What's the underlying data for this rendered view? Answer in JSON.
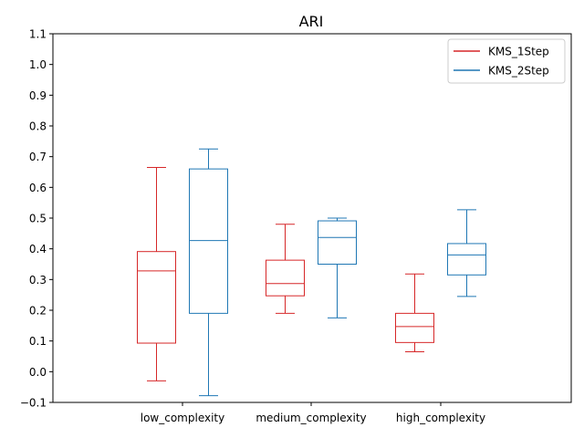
{
  "chart_data": {
    "type": "box",
    "title": "ARI",
    "xlabel": "",
    "ylabel": "",
    "ylim": [
      -0.1,
      1.1
    ],
    "yticks": [
      -0.1,
      0.0,
      0.1,
      0.2,
      0.3,
      0.4,
      0.5,
      0.6,
      0.7,
      0.8,
      0.9,
      1.0,
      1.1
    ],
    "ytick_labels": [
      "−0.1",
      "0.0",
      "0.1",
      "0.2",
      "0.3",
      "0.4",
      "0.5",
      "0.6",
      "0.7",
      "0.8",
      "0.9",
      "1.0",
      "1.1"
    ],
    "categories": [
      "low_complexity",
      "medium_complexity",
      "high_complexity"
    ],
    "legend_position": "top-right",
    "series": [
      {
        "name": "KMS_1Step",
        "color": "#d62728",
        "boxes": [
          {
            "whisker_low": -0.03,
            "q1": 0.093,
            "median": 0.328,
            "q3": 0.391,
            "whisker_high": 0.665
          },
          {
            "whisker_low": 0.19,
            "q1": 0.247,
            "median": 0.287,
            "q3": 0.363,
            "whisker_high": 0.48
          },
          {
            "whisker_low": 0.065,
            "q1": 0.095,
            "median": 0.147,
            "q3": 0.19,
            "whisker_high": 0.318
          }
        ]
      },
      {
        "name": "KMS_2Step",
        "color": "#1f77b4",
        "boxes": [
          {
            "whisker_low": -0.078,
            "q1": 0.19,
            "median": 0.427,
            "q3": 0.66,
            "whisker_high": 0.725
          },
          {
            "whisker_low": 0.175,
            "q1": 0.35,
            "median": 0.437,
            "q3": 0.491,
            "whisker_high": 0.5
          },
          {
            "whisker_low": 0.245,
            "q1": 0.315,
            "median": 0.38,
            "q3": 0.417,
            "whisker_high": 0.527
          }
        ]
      }
    ]
  }
}
